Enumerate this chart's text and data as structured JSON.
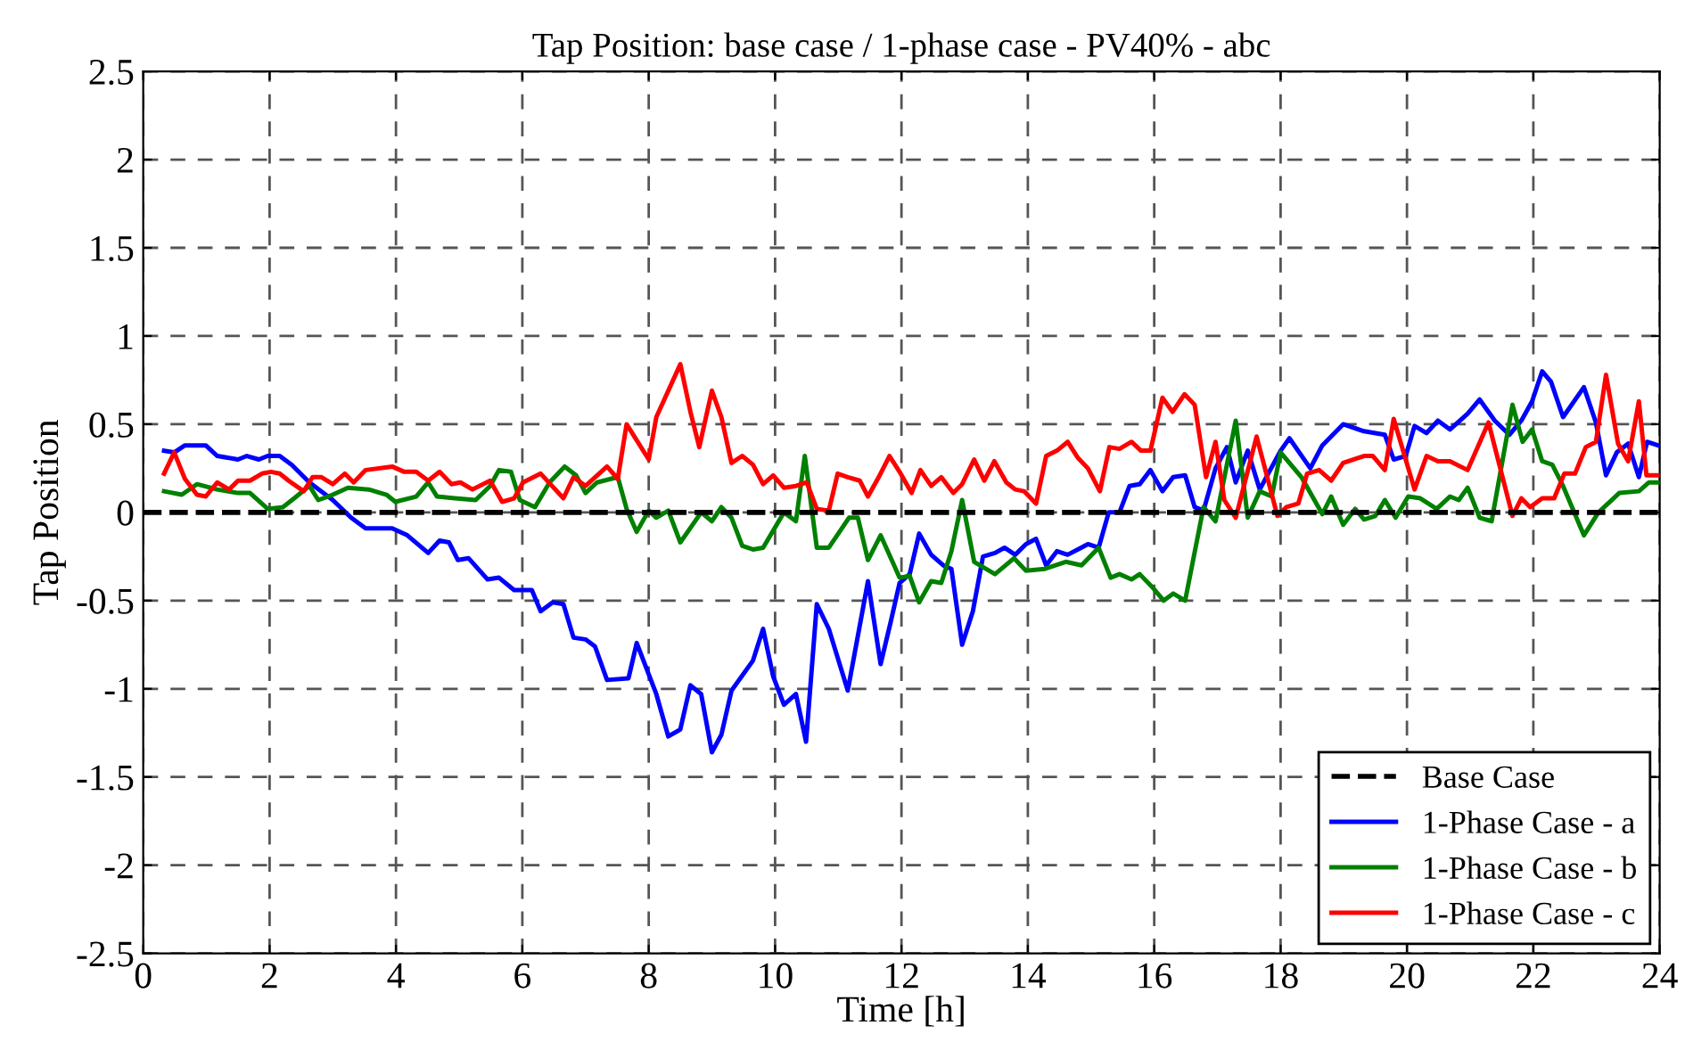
{
  "chart_data": {
    "type": "line",
    "title": "Tap Position: base case / 1-phase case - PV40% - abc",
    "xlabel": "Time [h]",
    "ylabel": "Tap Position",
    "xlim": [
      0,
      24
    ],
    "xticks": [
      0,
      2,
      4,
      6,
      8,
      10,
      12,
      14,
      16,
      18,
      20,
      22,
      24
    ],
    "ylim": [
      -2.5,
      2.5
    ],
    "yticks": [
      -2.5,
      -2,
      -1.5,
      -1,
      -0.5,
      0,
      0.5,
      1,
      1.5,
      2,
      2.5
    ],
    "grid": true,
    "legend": "bottom right",
    "series": [
      {
        "name": "Base Case",
        "color": "#000000",
        "line_style": "dashed",
        "x": [
          0,
          24
        ],
        "values": [
          0,
          0
        ]
      },
      {
        "name": "1-Phase Case - a",
        "color": "#0000ff",
        "line_style": "solid",
        "x": [
          0.33,
          0.49,
          0.66,
          0.99,
          1.17,
          1.5,
          1.64,
          1.83,
          1.97,
          2.16,
          2.35,
          2.63,
          3.0,
          3.29,
          3.52,
          3.94,
          4.18,
          4.51,
          4.69,
          4.84,
          4.98,
          5.15,
          5.45,
          5.63,
          5.87,
          6.15,
          6.29,
          6.48,
          6.65,
          6.81,
          7.0,
          7.15,
          7.34,
          7.68,
          7.81,
          8.12,
          8.31,
          8.5,
          8.66,
          8.83,
          9.0,
          9.15,
          9.31,
          9.65,
          9.81,
          9.97,
          10.14,
          10.33,
          10.49,
          10.66,
          10.85,
          11.15,
          11.47,
          11.67,
          11.83,
          11.97,
          12.13,
          12.28,
          12.47,
          12.66,
          12.79,
          12.96,
          13.13,
          13.29,
          13.48,
          13.63,
          13.8,
          13.97,
          14.13,
          14.29,
          14.46,
          14.63,
          14.79,
          14.95,
          15.12,
          15.28,
          15.45,
          15.61,
          15.77,
          15.94,
          16.13,
          16.3,
          16.49,
          16.64,
          16.78,
          16.97,
          17.15,
          17.29,
          17.48,
          17.67,
          18.0,
          18.14,
          18.47,
          18.66,
          18.99,
          19.32,
          19.65,
          19.79,
          19.98,
          20.12,
          20.31,
          20.49,
          20.68,
          20.96,
          21.15,
          21.39,
          21.62,
          21.81,
          21.98,
          22.14,
          22.28,
          22.47,
          22.8,
          22.99,
          23.15,
          23.32,
          23.5,
          23.67,
          23.8,
          23.97
        ],
        "values": [
          0.35,
          0.34,
          0.38,
          0.38,
          0.32,
          0.3,
          0.32,
          0.3,
          0.32,
          0.32,
          0.27,
          0.17,
          0.07,
          -0.03,
          -0.09,
          -0.09,
          -0.13,
          -0.23,
          -0.16,
          -0.17,
          -0.27,
          -0.26,
          -0.38,
          -0.37,
          -0.44,
          -0.44,
          -0.56,
          -0.51,
          -0.52,
          -0.71,
          -0.72,
          -0.76,
          -0.95,
          -0.94,
          -0.74,
          -1.03,
          -1.27,
          -1.23,
          -0.98,
          -1.03,
          -1.36,
          -1.26,
          -1.01,
          -0.84,
          -0.66,
          -0.93,
          -1.09,
          -1.03,
          -1.3,
          -0.52,
          -0.66,
          -1.01,
          -0.39,
          -0.86,
          -0.62,
          -0.4,
          -0.35,
          -0.12,
          -0.24,
          -0.3,
          -0.32,
          -0.75,
          -0.56,
          -0.25,
          -0.23,
          -0.2,
          -0.24,
          -0.18,
          -0.15,
          -0.3,
          -0.22,
          -0.24,
          -0.21,
          -0.18,
          -0.2,
          0.0,
          0.0,
          0.15,
          0.16,
          0.24,
          0.12,
          0.2,
          0.21,
          0.03,
          0.01,
          0.25,
          0.37,
          0.17,
          0.35,
          0.13,
          0.35,
          0.42,
          0.25,
          0.38,
          0.5,
          0.46,
          0.44,
          0.3,
          0.32,
          0.49,
          0.45,
          0.52,
          0.47,
          0.56,
          0.64,
          0.52,
          0.44,
          0.52,
          0.63,
          0.8,
          0.74,
          0.54,
          0.71,
          0.51,
          0.21,
          0.34,
          0.39,
          0.2,
          0.4,
          0.38
        ]
      },
      {
        "name": "1-Phase Case - b",
        "color": "#008000",
        "line_style": "solid",
        "x": [
          0.33,
          0.61,
          0.85,
          1.17,
          1.5,
          1.69,
          1.97,
          2.21,
          2.39,
          2.63,
          2.77,
          3.0,
          3.24,
          3.57,
          3.85,
          3.99,
          4.32,
          4.51,
          4.65,
          4.93,
          5.26,
          5.49,
          5.63,
          5.82,
          5.96,
          6.2,
          6.43,
          6.67,
          6.85,
          7.0,
          7.18,
          7.51,
          7.65,
          7.81,
          8.0,
          8.12,
          8.31,
          8.5,
          8.83,
          9.0,
          9.15,
          9.31,
          9.48,
          9.65,
          9.81,
          10.14,
          10.33,
          10.47,
          10.66,
          10.85,
          11.17,
          11.31,
          11.47,
          11.67,
          11.97,
          12.13,
          12.28,
          12.47,
          12.63,
          12.79,
          12.96,
          13.15,
          13.48,
          13.78,
          13.97,
          14.27,
          14.6,
          14.85,
          15.12,
          15.31,
          15.45,
          15.64,
          15.77,
          15.96,
          16.15,
          16.3,
          16.49,
          16.78,
          16.97,
          17.29,
          17.48,
          17.67,
          17.86,
          18.0,
          18.33,
          18.66,
          18.8,
          18.99,
          19.18,
          19.32,
          19.5,
          19.65,
          19.82,
          20.02,
          20.21,
          20.47,
          20.68,
          20.82,
          20.96,
          21.15,
          21.34,
          21.67,
          21.83,
          21.98,
          22.14,
          22.3,
          22.47,
          22.8,
          23.03,
          23.36,
          23.67,
          23.83,
          23.97
        ],
        "values": [
          0.12,
          0.1,
          0.16,
          0.13,
          0.11,
          0.11,
          0.02,
          0.03,
          0.08,
          0.15,
          0.07,
          0.1,
          0.14,
          0.13,
          0.1,
          0.06,
          0.09,
          0.17,
          0.09,
          0.08,
          0.07,
          0.15,
          0.24,
          0.23,
          0.07,
          0.03,
          0.17,
          0.26,
          0.21,
          0.11,
          0.17,
          0.2,
          0.02,
          -0.11,
          0.01,
          -0.03,
          0.01,
          -0.17,
          0.0,
          -0.05,
          0.03,
          -0.03,
          -0.19,
          -0.21,
          -0.2,
          0.0,
          -0.05,
          0.32,
          -0.2,
          -0.2,
          -0.03,
          -0.03,
          -0.27,
          -0.13,
          -0.37,
          -0.36,
          -0.51,
          -0.39,
          -0.4,
          -0.22,
          0.07,
          -0.28,
          -0.35,
          -0.26,
          -0.33,
          -0.32,
          -0.28,
          -0.3,
          -0.2,
          -0.37,
          -0.35,
          -0.38,
          -0.35,
          -0.42,
          -0.5,
          -0.46,
          -0.5,
          0.03,
          -0.05,
          0.52,
          -0.03,
          0.12,
          0.09,
          0.34,
          0.2,
          -0.01,
          0.09,
          -0.07,
          0.02,
          -0.04,
          -0.02,
          0.07,
          -0.03,
          0.09,
          0.08,
          0.02,
          0.09,
          0.07,
          0.14,
          -0.03,
          -0.05,
          0.61,
          0.4,
          0.47,
          0.29,
          0.27,
          0.15,
          -0.13,
          0.0,
          0.11,
          0.12,
          0.17,
          0.17
        ]
      },
      {
        "name": "1-Phase Case - c",
        "color": "#ff0000",
        "line_style": "solid",
        "x": [
          0.33,
          0.49,
          0.66,
          0.85,
          0.99,
          1.17,
          1.36,
          1.5,
          1.69,
          1.88,
          2.02,
          2.16,
          2.3,
          2.54,
          2.68,
          2.82,
          3.0,
          3.19,
          3.33,
          3.52,
          3.94,
          4.13,
          4.32,
          4.51,
          4.69,
          4.88,
          5.02,
          5.21,
          5.49,
          5.68,
          5.87,
          6.01,
          6.29,
          6.65,
          6.81,
          7.0,
          7.34,
          7.51,
          7.65,
          8.0,
          8.12,
          8.5,
          8.66,
          8.8,
          9.0,
          9.15,
          9.31,
          9.48,
          9.65,
          9.81,
          9.97,
          10.14,
          10.33,
          10.5,
          10.66,
          10.85,
          10.99,
          11.15,
          11.34,
          11.47,
          11.64,
          11.81,
          11.97,
          12.16,
          12.3,
          12.47,
          12.63,
          12.82,
          12.96,
          13.15,
          13.31,
          13.47,
          13.66,
          13.8,
          13.94,
          14.13,
          14.29,
          14.46,
          14.63,
          14.79,
          14.95,
          15.14,
          15.29,
          15.45,
          15.64,
          15.79,
          15.94,
          16.13,
          16.29,
          16.48,
          16.64,
          16.82,
          16.97,
          17.11,
          17.29,
          17.62,
          17.95,
          18.09,
          18.28,
          18.42,
          18.61,
          18.8,
          18.99,
          19.32,
          19.46,
          19.65,
          19.79,
          20.12,
          20.31,
          20.49,
          20.68,
          20.96,
          21.29,
          21.67,
          21.81,
          21.95,
          22.14,
          22.33,
          22.49,
          22.66,
          22.83,
          22.99,
          23.15,
          23.34,
          23.5,
          23.67,
          23.79,
          23.97
        ],
        "values": [
          0.22,
          0.34,
          0.19,
          0.1,
          0.09,
          0.17,
          0.13,
          0.18,
          0.18,
          0.22,
          0.23,
          0.22,
          0.18,
          0.12,
          0.2,
          0.2,
          0.16,
          0.22,
          0.17,
          0.24,
          0.26,
          0.23,
          0.23,
          0.18,
          0.23,
          0.16,
          0.17,
          0.13,
          0.18,
          0.06,
          0.08,
          0.17,
          0.22,
          0.08,
          0.2,
          0.15,
          0.26,
          0.19,
          0.5,
          0.3,
          0.54,
          0.84,
          0.57,
          0.37,
          0.69,
          0.54,
          0.28,
          0.32,
          0.27,
          0.16,
          0.21,
          0.14,
          0.15,
          0.17,
          0.02,
          0.01,
          0.22,
          0.2,
          0.18,
          0.09,
          0.2,
          0.32,
          0.23,
          0.11,
          0.24,
          0.15,
          0.2,
          0.11,
          0.16,
          0.3,
          0.18,
          0.29,
          0.17,
          0.13,
          0.12,
          0.05,
          0.32,
          0.35,
          0.4,
          0.31,
          0.25,
          0.12,
          0.37,
          0.36,
          0.4,
          0.35,
          0.35,
          0.65,
          0.57,
          0.67,
          0.61,
          0.2,
          0.4,
          0.07,
          -0.03,
          0.43,
          -0.02,
          0.03,
          0.05,
          0.22,
          0.24,
          0.18,
          0.28,
          0.32,
          0.32,
          0.24,
          0.53,
          0.13,
          0.32,
          0.29,
          0.29,
          0.24,
          0.51,
          -0.02,
          0.08,
          0.03,
          0.08,
          0.08,
          0.22,
          0.22,
          0.37,
          0.4,
          0.78,
          0.39,
          0.29,
          0.63,
          0.21,
          0.21
        ]
      }
    ]
  }
}
